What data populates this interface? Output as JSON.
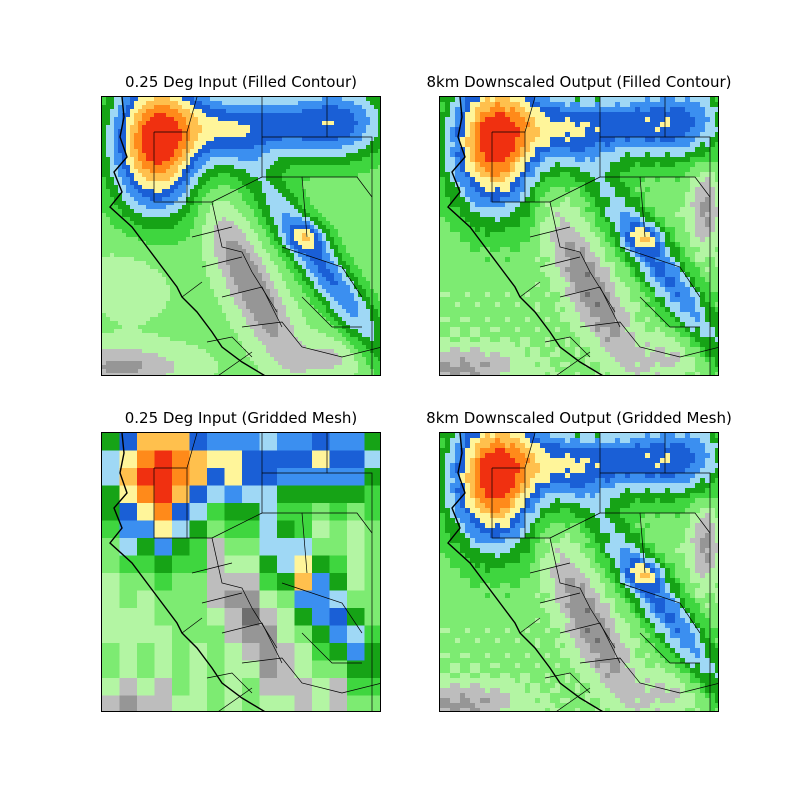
{
  "panels": [
    {
      "id": "p1",
      "title": "0.25 Deg Input (Filled Contour)",
      "style": "contour",
      "resolution": "coarse"
    },
    {
      "id": "p2",
      "title": "8km Downscaled Output (Filled Contour)",
      "style": "contour",
      "resolution": "fine"
    },
    {
      "id": "p3",
      "title": "0.25 Deg Input (Gridded Mesh)",
      "style": "mesh",
      "resolution": "coarse"
    },
    {
      "id": "p4",
      "title": "8km Downscaled Output (Gridded Mesh)",
      "style": "mesh",
      "resolution": "fine"
    }
  ],
  "palette": {
    "gray_dark": "#6e6e6e",
    "gray_mid": "#969696",
    "gray_light": "#bdbdbd",
    "green_pale": "#b3f5a3",
    "green_light": "#7deb72",
    "green": "#3fd63f",
    "green_dark": "#16a316",
    "blue_pale": "#9fd8f5",
    "blue": "#3b8ff0",
    "blue_dark": "#1a5fd6",
    "yellow": "#fff59a",
    "orange_light": "#ffc04d",
    "orange": "#ff8a1a",
    "red": "#f03010"
  }
}
